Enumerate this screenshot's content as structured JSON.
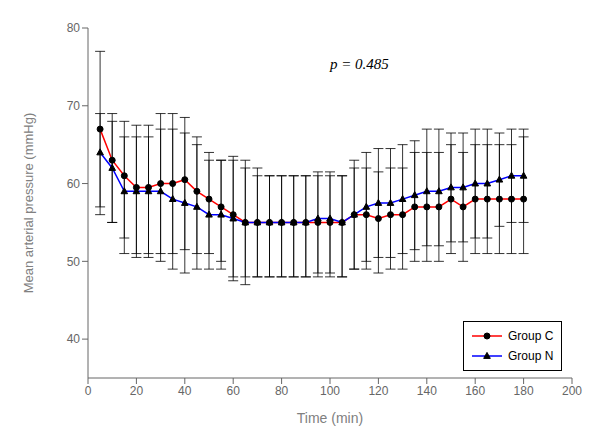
{
  "chart_data": {
    "type": "line",
    "xlabel": "Time (min)",
    "ylabel": "Mean arterial pressure (mmHg)",
    "annotation": "p = 0.485",
    "xlim": [
      0,
      200
    ],
    "ylim": [
      35,
      80
    ],
    "xticks": [
      0,
      20,
      40,
      60,
      80,
      100,
      120,
      140,
      160,
      180,
      200
    ],
    "yticks": [
      40,
      50,
      60,
      70,
      80
    ],
    "grid": false,
    "legend": "lower right",
    "x": [
      5,
      10,
      15,
      20,
      25,
      30,
      35,
      40,
      45,
      50,
      55,
      60,
      65,
      70,
      75,
      80,
      85,
      90,
      95,
      100,
      105,
      110,
      115,
      120,
      125,
      130,
      135,
      140,
      145,
      150,
      155,
      160,
      165,
      170,
      175,
      180
    ],
    "series": [
      {
        "name": "Group C",
        "color": "#ff0000",
        "marker": "circle",
        "values": [
          67,
          63,
          61,
          59.5,
          59.5,
          60,
          60,
          60.5,
          59,
          58,
          57,
          56,
          55,
          55,
          55,
          55,
          55,
          55,
          55,
          55,
          55,
          56,
          56,
          55.5,
          56,
          56,
          57,
          57,
          57,
          58,
          57,
          58,
          58,
          58,
          58,
          58
        ],
        "err_up": [
          10,
          6,
          7,
          8,
          8,
          9,
          9,
          8,
          7,
          6,
          6,
          7,
          8,
          7,
          6,
          6,
          6,
          6,
          6,
          6,
          6,
          6,
          6,
          6,
          6,
          6,
          7,
          7,
          7,
          7,
          7,
          7,
          7,
          7,
          7,
          8
        ],
        "err_down": [
          10,
          8,
          8,
          9,
          9,
          9,
          9,
          9,
          8,
          7,
          7,
          8,
          8,
          7,
          7,
          7,
          7,
          7,
          7,
          7,
          7,
          7,
          7,
          7,
          7,
          7,
          7,
          7,
          7,
          7,
          7,
          7,
          7,
          7,
          7,
          7
        ]
      },
      {
        "name": "Group N",
        "color": "#0000ff",
        "marker": "triangle",
        "values": [
          64,
          62,
          59,
          59,
          59,
          59,
          58,
          57.5,
          57,
          56,
          56,
          55.5,
          55,
          55,
          55,
          55,
          55,
          55,
          55.5,
          55.5,
          55,
          56,
          57,
          57.5,
          57.5,
          58,
          58.5,
          59,
          59,
          59.5,
          59.5,
          60,
          60,
          60.5,
          61,
          61
        ],
        "err_up": [
          5,
          6,
          7,
          7,
          7,
          8,
          9,
          9,
          8,
          7,
          7,
          8,
          7,
          6,
          6,
          6,
          6,
          6,
          6,
          6,
          6,
          7,
          7,
          7,
          7,
          7,
          7,
          8,
          8,
          7,
          7,
          7,
          7,
          6,
          6,
          6
        ],
        "err_down": [
          8,
          7,
          8,
          8,
          8,
          9,
          9,
          9,
          8,
          7,
          7,
          8,
          7,
          7,
          7,
          7,
          7,
          7,
          7,
          7,
          7,
          7,
          7,
          7,
          7,
          7,
          7,
          7,
          7,
          7,
          7,
          7,
          7,
          6,
          6,
          6
        ]
      }
    ]
  }
}
